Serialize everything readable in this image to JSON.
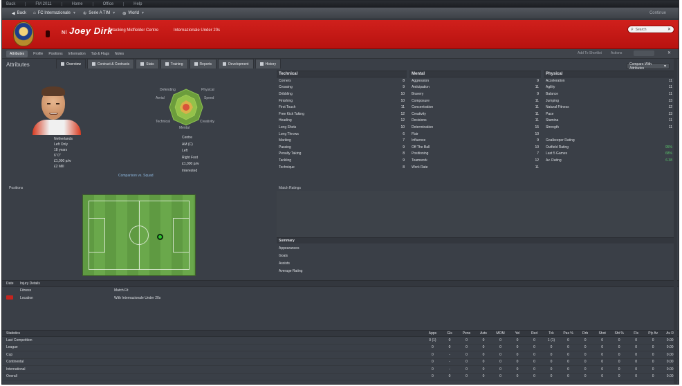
{
  "topbar": {
    "items": [
      "Back",
      "FM 2011",
      "Home",
      "Office",
      "Help"
    ]
  },
  "navbar": {
    "items": [
      {
        "label": "Back",
        "icon": "back-icon"
      },
      {
        "label": "FC Internazionale",
        "icon": "home-icon"
      },
      {
        "label": "Serie A TIM",
        "icon": "trophy-icon"
      },
      {
        "label": "World",
        "icon": "globe-icon"
      }
    ],
    "right": "Continue"
  },
  "header": {
    "name_prefix": "Nl",
    "name": "Joey Dirk",
    "role": "Attacking Midfielder Centre",
    "club": "Internazionale Under 20s",
    "search_placeholder": "Search"
  },
  "tabs": [
    {
      "label": "Overview",
      "active": true
    },
    {
      "label": "Contract & Contracts",
      "active": false
    },
    {
      "label": "Stats",
      "active": false
    },
    {
      "label": "Training",
      "active": false
    },
    {
      "label": "Reports",
      "active": false
    },
    {
      "label": "Development",
      "active": false
    },
    {
      "label": "History",
      "active": false
    }
  ],
  "subtabs": [
    {
      "label": "Attributes",
      "active": true
    },
    {
      "label": "Profile",
      "active": false
    },
    {
      "label": "Positions",
      "active": false
    },
    {
      "label": "Information",
      "active": false
    },
    {
      "label": "Tab & Flags",
      "active": false
    },
    {
      "label": "Notes",
      "active": false
    }
  ],
  "subtabs_right": {
    "a": "Add To Shortlist",
    "b": "Actions"
  },
  "section": {
    "title": "Attributes",
    "dropdown": "Compare With Attributes"
  },
  "player_info": {
    "lines": [
      "Netherlands",
      "Left Only",
      "18 years",
      "6' 0\"",
      "£1,000 p/w",
      "£2 Mill"
    ]
  },
  "polygon": {
    "labels": {
      "top_left": "Defending",
      "top_right": "Physical",
      "left": "Aerial",
      "right": "Speed",
      "bottom_left": "Technical",
      "bottom_right": "Creativity",
      "bottom": "Mental"
    },
    "info": [
      "Centre",
      "AM (C)",
      "Left",
      "Right Foot",
      "£1,000 p/w",
      "Interested",
      "None"
    ]
  },
  "compare_link": "Comparison vs. Squad",
  "technical": {
    "title": "Technical",
    "rows": [
      {
        "label": "Corners",
        "value": "8"
      },
      {
        "label": "Crossing",
        "value": "9"
      },
      {
        "label": "Dribbling",
        "value": "10"
      },
      {
        "label": "Finishing",
        "value": "10"
      },
      {
        "label": "First Touch",
        "value": "11"
      },
      {
        "label": "Free Kick Taking",
        "value": "12"
      },
      {
        "label": "Heading",
        "value": "12"
      },
      {
        "label": "Long Shots",
        "value": "10"
      },
      {
        "label": "Long Throws",
        "value": "6"
      },
      {
        "label": "Marking",
        "value": "7"
      },
      {
        "label": "Passing",
        "value": "9"
      },
      {
        "label": "Penalty Taking",
        "value": "8"
      },
      {
        "label": "Tackling",
        "value": "9"
      },
      {
        "label": "Technique",
        "value": "8"
      }
    ]
  },
  "mental": {
    "title": "Mental",
    "rows": [
      {
        "label": "Aggression",
        "value": "9"
      },
      {
        "label": "Anticipation",
        "value": "11"
      },
      {
        "label": "Bravery",
        "value": "9"
      },
      {
        "label": "Composure",
        "value": "11"
      },
      {
        "label": "Concentration",
        "value": "11"
      },
      {
        "label": "Creativity",
        "value": "11"
      },
      {
        "label": "Decisions",
        "value": "11"
      },
      {
        "label": "Determination",
        "value": "15"
      },
      {
        "label": "Flair",
        "value": "10"
      },
      {
        "label": "Influence",
        "value": "9"
      },
      {
        "label": "Off The Ball",
        "value": "10"
      },
      {
        "label": "Positioning",
        "value": "7"
      },
      {
        "label": "Teamwork",
        "value": "12"
      },
      {
        "label": "Work Rate",
        "value": "11"
      }
    ]
  },
  "physical": {
    "title": "Physical",
    "rows": [
      {
        "label": "Acceleration",
        "value": "11",
        "green": false
      },
      {
        "label": "Agility",
        "value": "11",
        "green": false
      },
      {
        "label": "Balance",
        "value": "11",
        "green": false
      },
      {
        "label": "Jumping",
        "value": "13",
        "green": false
      },
      {
        "label": "Natural Fitness",
        "value": "12",
        "green": false
      },
      {
        "label": "Pace",
        "value": "13",
        "green": false
      },
      {
        "label": "Stamina",
        "value": "11",
        "green": false
      },
      {
        "label": "Strength",
        "value": "11",
        "green": false
      },
      {
        "label": "",
        "value": "",
        "green": false
      },
      {
        "label": "Goalkeeper Rating",
        "value": "",
        "green": false
      },
      {
        "label": "Outfield Rating",
        "value": "95%",
        "green": true
      },
      {
        "label": "Last 5 Games",
        "value": "68%",
        "green": true
      },
      {
        "label": "Av. Rating",
        "value": "6.38",
        "green": true
      }
    ]
  },
  "position_label": "Positions",
  "match_ratings": {
    "title": "Match Ratings",
    "sub_title": "Summary",
    "rows": [
      "Appearances",
      "Goals",
      "Assists",
      "Average Rating"
    ]
  },
  "status": {
    "head": [
      "Date",
      "Injury Details"
    ],
    "rows": [
      {
        "a": "",
        "b": "Fitness",
        "c": "Match Fit"
      },
      {
        "a": "",
        "b": "Location",
        "c": "With Internazionale Under 20s"
      }
    ]
  },
  "stats": {
    "headers": [
      "Statistics",
      "Apps",
      "Gls",
      "Pens",
      "Asts",
      "MOM",
      "Yel",
      "Red",
      "Tck",
      "Pas %",
      "Drb",
      "Shot",
      "Sht %",
      "Fls",
      "Ply Av",
      "Av R"
    ],
    "rows": [
      {
        "label": "Last Competition",
        "cells": [
          "0 (1)",
          "0",
          "0",
          "0",
          "0",
          "0",
          "0",
          "1 (1)",
          "0",
          "0",
          "0",
          "0",
          "0",
          "0",
          "0.00"
        ]
      },
      {
        "label": "League",
        "cells": [
          "0",
          "0",
          "0",
          "0",
          "0",
          "0",
          "0",
          "0",
          "0",
          "0",
          "0",
          "0",
          "0",
          "0",
          "0.00"
        ]
      },
      {
        "label": "Cup",
        "cells": [
          "0",
          "-",
          "0",
          "0",
          "0",
          "0",
          "0",
          "0",
          "0",
          "0",
          "0",
          "0",
          "0",
          "0",
          "0.00"
        ]
      },
      {
        "label": "Continental",
        "cells": [
          "0",
          "-",
          "0",
          "0",
          "0",
          "0",
          "0",
          "0",
          "0",
          "0",
          "0",
          "0",
          "0",
          "0",
          "0.00"
        ]
      },
      {
        "label": "International",
        "cells": [
          "0",
          "-",
          "0",
          "0",
          "0",
          "0",
          "0",
          "0",
          "0",
          "0",
          "0",
          "0",
          "0",
          "0",
          "0.00"
        ]
      },
      {
        "label": "Overall",
        "cells": [
          "0",
          "0",
          "0",
          "0",
          "0",
          "0",
          "0",
          "0",
          "0",
          "0",
          "0",
          "0",
          "0",
          "0",
          "0.00"
        ]
      }
    ]
  }
}
